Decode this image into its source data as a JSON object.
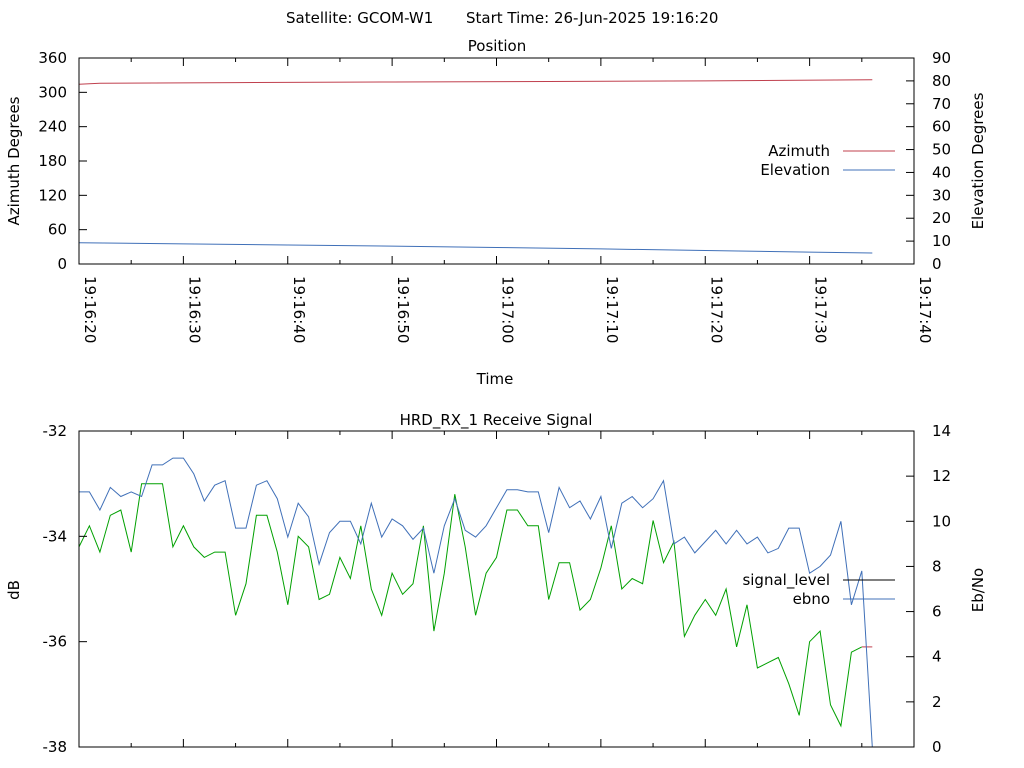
{
  "header": {
    "satellite": "Satellite: GCOM-W1",
    "start_time": "Start Time: 26-Jun-2025 19:16:20"
  },
  "colors": {
    "azimuth": "#c0404e",
    "elevation": "#4070b8",
    "signal_level": "#000000",
    "signal_trace": "#00a000",
    "signal_tail": "#c0404e",
    "ebno": "#4070b8"
  },
  "chart_data": [
    {
      "type": "line",
      "title": "Position",
      "xlabel": "Time",
      "ylabel": "Azimuth Degrees",
      "y2label": "Elevation Degrees",
      "ylim": [
        0,
        360
      ],
      "y2lim": [
        0,
        90
      ],
      "yticks": [
        "0",
        "60",
        "120",
        "180",
        "240",
        "300",
        "360"
      ],
      "y2ticks": [
        "0",
        "10",
        "20",
        "30",
        "40",
        "50",
        "60",
        "70",
        "80",
        "90"
      ],
      "xticks": [
        "19:16:20",
        "19:16:30",
        "19:16:40",
        "19:16:50",
        "19:17:00",
        "19:17:10",
        "19:17:20",
        "19:17:30",
        "19:17:40"
      ],
      "xlim": [
        0,
        80
      ],
      "legend": "right",
      "series": [
        {
          "name": "Azimuth",
          "axis": "y1",
          "x": [
            0,
            2,
            15,
            30,
            45,
            60,
            76
          ],
          "values": [
            314,
            316,
            317,
            318,
            319,
            320,
            322
          ]
        },
        {
          "name": "Elevation",
          "axis": "y2",
          "x": [
            0,
            10,
            20,
            30,
            40,
            50,
            60,
            70,
            76
          ],
          "values": [
            9.3,
            8.8,
            8.3,
            7.8,
            7.2,
            6.6,
            5.9,
            5.2,
            4.8
          ]
        }
      ]
    },
    {
      "type": "line",
      "title": "HRD_RX_1 Receive Signal",
      "ylabel": "dB",
      "y2label": "Eb/No",
      "ylim": [
        -38,
        -32
      ],
      "y2lim": [
        0,
        14
      ],
      "yticks": [
        "-38",
        "-36",
        "-34",
        "-32"
      ],
      "y2ticks": [
        "0",
        "2",
        "4",
        "6",
        "8",
        "10",
        "12",
        "14"
      ],
      "xlim": [
        0,
        80
      ],
      "legend": "right",
      "series": [
        {
          "name": "signal_level",
          "axis": "y1",
          "x": [
            0,
            1,
            2,
            3,
            4,
            5,
            6,
            7,
            8,
            9,
            10,
            11,
            12,
            13,
            14,
            15,
            16,
            17,
            18,
            19,
            20,
            21,
            22,
            23,
            24,
            25,
            26,
            27,
            28,
            29,
            30,
            31,
            32,
            33,
            34,
            35,
            36,
            37,
            38,
            39,
            40,
            41,
            42,
            43,
            44,
            45,
            46,
            47,
            48,
            49,
            50,
            51,
            52,
            53,
            54,
            55,
            56,
            57,
            58,
            59,
            60,
            61,
            62,
            63,
            64,
            65,
            66,
            67,
            68,
            69,
            70,
            71,
            72,
            73,
            74,
            75,
            76
          ],
          "values": [
            -34.2,
            -33.8,
            -34.3,
            -33.6,
            -33.5,
            -34.3,
            -33.0,
            -33.0,
            -33.0,
            -34.2,
            -33.8,
            -34.2,
            -34.4,
            -34.3,
            -34.3,
            -35.5,
            -34.9,
            -33.6,
            -33.6,
            -34.3,
            -35.3,
            -34.0,
            -34.2,
            -35.2,
            -35.1,
            -34.4,
            -34.8,
            -33.8,
            -35.0,
            -35.5,
            -34.7,
            -35.1,
            -34.9,
            -33.8,
            -35.8,
            -34.7,
            -33.2,
            -34.2,
            -35.5,
            -34.7,
            -34.4,
            -33.5,
            -33.5,
            -33.8,
            -33.8,
            -35.2,
            -34.5,
            -34.5,
            -35.4,
            -35.2,
            -34.6,
            -33.8,
            -35.0,
            -34.8,
            -34.9,
            -33.7,
            -34.5,
            -34.1,
            -35.9,
            -35.5,
            -35.2,
            -35.5,
            -35.0,
            -36.1,
            -35.3,
            -36.5,
            -36.4,
            -36.3,
            -36.8,
            -37.4,
            -36.0,
            -35.8,
            -37.2,
            -37.6,
            -36.2,
            -36.1,
            -36.1
          ]
        },
        {
          "name": "ebno",
          "axis": "y2",
          "x": [
            0,
            1,
            2,
            3,
            4,
            5,
            6,
            7,
            8,
            9,
            10,
            11,
            12,
            13,
            14,
            15,
            16,
            17,
            18,
            19,
            20,
            21,
            22,
            23,
            24,
            25,
            26,
            27,
            28,
            29,
            30,
            31,
            32,
            33,
            34,
            35,
            36,
            37,
            38,
            39,
            40,
            41,
            42,
            43,
            44,
            45,
            46,
            47,
            48,
            49,
            50,
            51,
            52,
            53,
            54,
            55,
            56,
            57,
            58,
            59,
            60,
            61,
            62,
            63,
            64,
            65,
            66,
            67,
            68,
            69,
            70,
            71,
            72,
            73,
            74,
            75,
            76
          ],
          "values": [
            11.3,
            11.3,
            10.5,
            11.5,
            11.1,
            11.3,
            11.1,
            12.5,
            12.5,
            12.8,
            12.8,
            12.1,
            10.9,
            11.6,
            11.8,
            9.7,
            9.7,
            11.6,
            11.8,
            11.0,
            9.3,
            10.8,
            10.2,
            8.1,
            9.5,
            10.0,
            10.0,
            9.0,
            10.8,
            9.3,
            10.1,
            9.8,
            9.2,
            9.7,
            7.7,
            9.8,
            11.0,
            9.6,
            9.3,
            9.8,
            10.6,
            11.4,
            11.4,
            11.3,
            11.3,
            9.5,
            11.5,
            10.6,
            10.9,
            10.1,
            11.1,
            8.8,
            10.8,
            11.1,
            10.6,
            11.0,
            11.8,
            9.0,
            9.3,
            8.6,
            9.1,
            9.6,
            9.0,
            9.6,
            9.0,
            9.3,
            8.6,
            8.8,
            9.7,
            9.7,
            7.7,
            8.0,
            8.5,
            10.0,
            6.3,
            7.8,
            0.0
          ]
        }
      ]
    }
  ]
}
